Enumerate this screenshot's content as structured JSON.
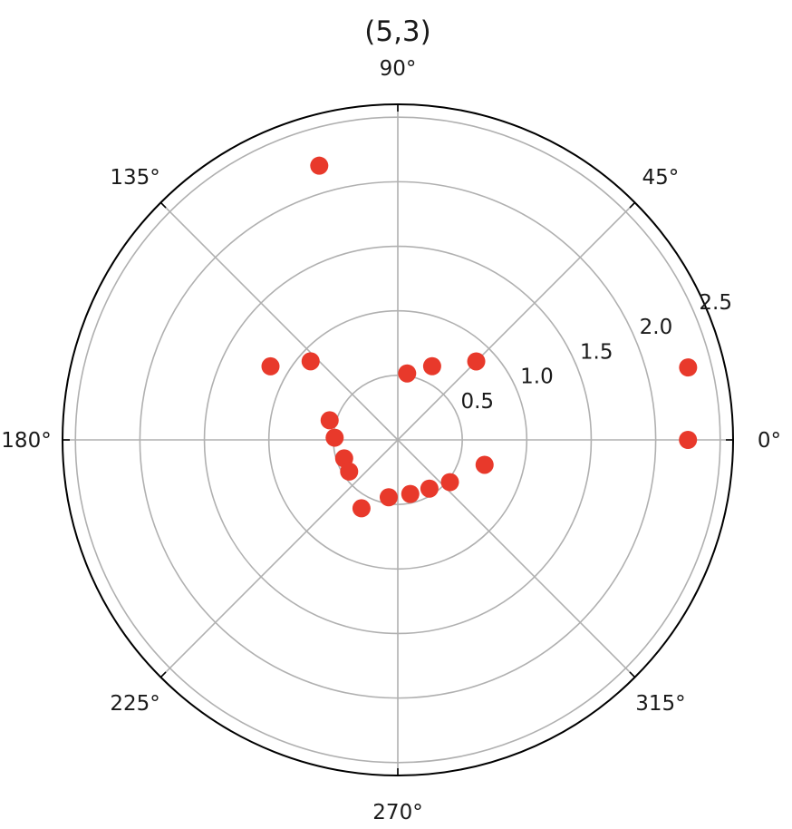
{
  "chart_data": {
    "type": "scatter",
    "projection": "polar",
    "title": "(5,3)",
    "theta_unit": "degrees",
    "theta_ticks": [
      "0°",
      "45°",
      "90°",
      "135°",
      "180°",
      "225°",
      "270°",
      "315°"
    ],
    "theta_tick_values": [
      0,
      45,
      90,
      135,
      180,
      225,
      270,
      315
    ],
    "r_ticks": [
      "0.5",
      "1.0",
      "1.5",
      "2.0",
      "2.5"
    ],
    "r_tick_values": [
      0.5,
      1.0,
      1.5,
      2.0,
      2.5
    ],
    "r_label_angle": 22.5,
    "rlim": [
      0,
      2.6
    ],
    "grid": true,
    "marker_color": "#e8392b",
    "points": [
      {
        "theta": 0,
        "r": 2.25
      },
      {
        "theta": 14,
        "r": 2.32
      },
      {
        "theta": 45,
        "r": 0.86
      },
      {
        "theta": 106,
        "r": 2.21
      },
      {
        "theta": 138,
        "r": 0.91
      },
      {
        "theta": 65,
        "r": 0.63
      },
      {
        "theta": 82,
        "r": 0.52
      },
      {
        "theta": 150,
        "r": 1.14
      },
      {
        "theta": 164,
        "r": 0.55
      },
      {
        "theta": 178,
        "r": 0.49
      },
      {
        "theta": 199,
        "r": 0.44
      },
      {
        "theta": 213,
        "r": 0.45
      },
      {
        "theta": 242,
        "r": 0.6
      },
      {
        "theta": 261,
        "r": 0.45
      },
      {
        "theta": 283,
        "r": 0.43
      },
      {
        "theta": 303,
        "r": 0.45
      },
      {
        "theta": 321,
        "r": 0.52
      },
      {
        "theta": 344,
        "r": 0.7
      }
    ]
  }
}
